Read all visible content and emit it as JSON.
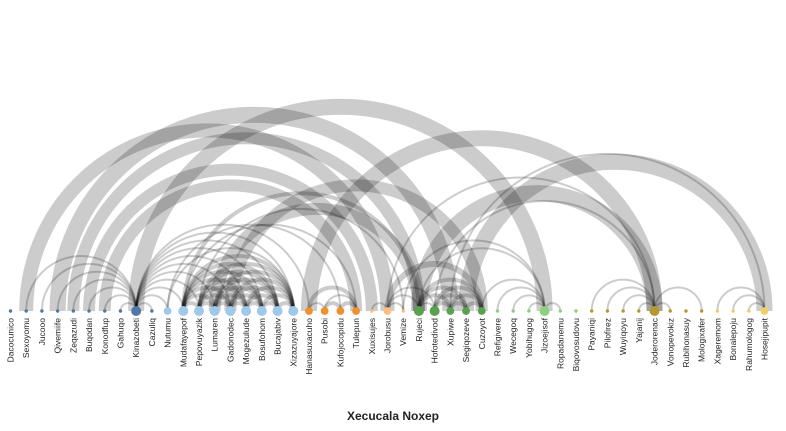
{
  "title": "Xecucala Noxep",
  "group_colors": {
    "blue": "#4e79a7",
    "light_blue": "#9ecae9",
    "orange": "#f28e2b",
    "light_orange": "#ffbe7d",
    "green": "#59a14f",
    "light_green": "#8cd17d",
    "olive": "#b6992d",
    "yellow": "#f1ce63"
  },
  "link_color": "#000000",
  "nodes": [
    {
      "id": "Dacocunico",
      "group": "blue",
      "size": 1
    },
    {
      "id": "Sexoyomu",
      "group": "blue",
      "size": 1
    },
    {
      "id": "Jucooo",
      "group": "blue",
      "size": 1
    },
    {
      "id": "Qivemiife",
      "group": "blue",
      "size": 1
    },
    {
      "id": "Zeqazudi",
      "group": "blue",
      "size": 1
    },
    {
      "id": "Buqodan",
      "group": "blue",
      "size": 1
    },
    {
      "id": "Konodfup",
      "group": "blue",
      "size": 1
    },
    {
      "id": "Gahuqo",
      "group": "blue",
      "size": 1
    },
    {
      "id": "Kinazobeti",
      "group": "blue",
      "size": 4
    },
    {
      "id": "Cazuliq",
      "group": "blue",
      "size": 1
    },
    {
      "id": "Nutumu",
      "group": "light_blue",
      "size": 3
    },
    {
      "id": "Mudafayepof",
      "group": "light_blue",
      "size": 4
    },
    {
      "id": "Pepovuyazik",
      "group": "light_blue",
      "size": 4
    },
    {
      "id": "Lumaren",
      "group": "light_blue",
      "size": 4
    },
    {
      "id": "Gadonodec",
      "group": "light_blue",
      "size": 4
    },
    {
      "id": "Mogezulude",
      "group": "light_blue",
      "size": 4
    },
    {
      "id": "Bosufohom",
      "group": "light_blue",
      "size": 4
    },
    {
      "id": "Bucajabiv",
      "group": "light_blue",
      "size": 4
    },
    {
      "id": "Xizazuyajore",
      "group": "light_blue",
      "size": 4
    },
    {
      "id": "Hanasuxacuho",
      "group": "orange",
      "size": 3
    },
    {
      "id": "Pusobi",
      "group": "orange",
      "size": 3
    },
    {
      "id": "Kufojocopidu",
      "group": "orange",
      "size": 3
    },
    {
      "id": "Tulepun",
      "group": "orange",
      "size": 3
    },
    {
      "id": "Xuxisujes",
      "group": "light_orange",
      "size": 1
    },
    {
      "id": "Jorobusu",
      "group": "light_orange",
      "size": 3
    },
    {
      "id": "Vemize",
      "group": "light_orange",
      "size": 1
    },
    {
      "id": "Rujeci",
      "group": "green",
      "size": 4
    },
    {
      "id": "Hofotedivod",
      "group": "green",
      "size": 4
    },
    {
      "id": "Xupiwe",
      "group": "green",
      "size": 3
    },
    {
      "id": "Segiqozeve",
      "group": "green",
      "size": 3
    },
    {
      "id": "Cuzoyot",
      "group": "green",
      "size": 3
    },
    {
      "id": "Refigivere",
      "group": "light_green",
      "size": 1
    },
    {
      "id": "Wecegoq",
      "group": "light_green",
      "size": 1
    },
    {
      "id": "Yobihugog",
      "group": "light_green",
      "size": 1
    },
    {
      "id": "Jizoejisof",
      "group": "light_green",
      "size": 4
    },
    {
      "id": "Ropadanemu",
      "group": "light_green",
      "size": 1
    },
    {
      "id": "Biqovosudovu",
      "group": "light_green",
      "size": 1
    },
    {
      "id": "Payaniqi",
      "group": "olive",
      "size": 1
    },
    {
      "id": "Pilofirez",
      "group": "olive",
      "size": 1
    },
    {
      "id": "Wuyiqoyu",
      "group": "olive",
      "size": 1
    },
    {
      "id": "Yajanij",
      "group": "olive",
      "size": 1
    },
    {
      "id": "Joderorenac",
      "group": "olive",
      "size": 4
    },
    {
      "id": "Vonopevokiz",
      "group": "olive",
      "size": 1
    },
    {
      "id": "Rubihonasuy",
      "group": "olive",
      "size": 1
    },
    {
      "id": "Mologixafer",
      "group": "olive",
      "size": 1
    },
    {
      "id": "Xageremom",
      "group": "yellow",
      "size": 1
    },
    {
      "id": "Bonalepoju",
      "group": "yellow",
      "size": 1
    },
    {
      "id": "Rahumologog",
      "group": "yellow",
      "size": 1
    },
    {
      "id": "Hosejipupit",
      "group": "yellow",
      "size": 3
    }
  ],
  "links": [
    {
      "source": "Sexoyomu",
      "target": "Kinazobeti",
      "value": 1
    },
    {
      "source": "Jucooo",
      "target": "Kinazobeti",
      "value": 1
    },
    {
      "source": "Qivemiife",
      "target": "Kinazobeti",
      "value": 1
    },
    {
      "source": "Zeqazudi",
      "target": "Kinazobeti",
      "value": 1
    },
    {
      "source": "Buqodan",
      "target": "Kinazobeti",
      "value": 1
    },
    {
      "source": "Konodfup",
      "target": "Kinazobeti",
      "value": 1
    },
    {
      "source": "Gahuqo",
      "target": "Kinazobeti",
      "value": 1
    },
    {
      "source": "Kinazobeti",
      "target": "Cazuliq",
      "value": 1
    },
    {
      "source": "Qivemiife",
      "target": "Xupiwe",
      "value": 8
    },
    {
      "source": "Sexoyomu",
      "target": "Jorobusu",
      "value": 7
    },
    {
      "source": "Zeqazudi",
      "target": "Rujeci",
      "value": 6
    },
    {
      "source": "Buqodan",
      "target": "Xuxisujes",
      "value": 6
    },
    {
      "source": "Konodfup",
      "target": "Tulepun",
      "value": 6
    },
    {
      "source": "Kinazobeti",
      "target": "Nutumu",
      "value": 1
    },
    {
      "source": "Kinazobeti",
      "target": "Mudafayepof",
      "value": 1
    },
    {
      "source": "Kinazobeti",
      "target": "Pepovuyazik",
      "value": 1
    },
    {
      "source": "Kinazobeti",
      "target": "Lumaren",
      "value": 1
    },
    {
      "source": "Kinazobeti",
      "target": "Gadonodec",
      "value": 1
    },
    {
      "source": "Kinazobeti",
      "target": "Mogezulude",
      "value": 1
    },
    {
      "source": "Kinazobeti",
      "target": "Bosufohom",
      "value": 1
    },
    {
      "source": "Kinazobeti",
      "target": "Bucajabiv",
      "value": 1
    },
    {
      "source": "Kinazobeti",
      "target": "Xizazuyajore",
      "value": 1
    },
    {
      "source": "Kinazobeti",
      "target": "Hanasuxacuho",
      "value": 1
    },
    {
      "source": "Kinazobeti",
      "target": "Jizoejisof",
      "value": 8
    },
    {
      "source": "Mudafayepof",
      "target": "Pepovuyazik",
      "value": 2
    },
    {
      "source": "Mudafayepof",
      "target": "Lumaren",
      "value": 2
    },
    {
      "source": "Mudafayepof",
      "target": "Gadonodec",
      "value": 2
    },
    {
      "source": "Mudafayepof",
      "target": "Mogezulude",
      "value": 2
    },
    {
      "source": "Mudafayepof",
      "target": "Bosufohom",
      "value": 2
    },
    {
      "source": "Mudafayepof",
      "target": "Bucajabiv",
      "value": 2
    },
    {
      "source": "Mudafayepof",
      "target": "Xizazuyajore",
      "value": 2
    },
    {
      "source": "Pepovuyazik",
      "target": "Lumaren",
      "value": 2
    },
    {
      "source": "Pepovuyazik",
      "target": "Gadonodec",
      "value": 2
    },
    {
      "source": "Pepovuyazik",
      "target": "Mogezulude",
      "value": 2
    },
    {
      "source": "Pepovuyazik",
      "target": "Bosufohom",
      "value": 2
    },
    {
      "source": "Pepovuyazik",
      "target": "Bucajabiv",
      "value": 2
    },
    {
      "source": "Pepovuyazik",
      "target": "Xizazuyajore",
      "value": 2
    },
    {
      "source": "Lumaren",
      "target": "Gadonodec",
      "value": 2
    },
    {
      "source": "Lumaren",
      "target": "Mogezulude",
      "value": 2
    },
    {
      "source": "Lumaren",
      "target": "Bosufohom",
      "value": 2
    },
    {
      "source": "Lumaren",
      "target": "Bucajabiv",
      "value": 2
    },
    {
      "source": "Lumaren",
      "target": "Xizazuyajore",
      "value": 2
    },
    {
      "source": "Gadonodec",
      "target": "Mogezulude",
      "value": 2
    },
    {
      "source": "Gadonodec",
      "target": "Bosufohom",
      "value": 2
    },
    {
      "source": "Gadonodec",
      "target": "Bucajabiv",
      "value": 2
    },
    {
      "source": "Gadonodec",
      "target": "Xizazuyajore",
      "value": 2
    },
    {
      "source": "Mogezulude",
      "target": "Bosufohom",
      "value": 2
    },
    {
      "source": "Mogezulude",
      "target": "Bucajabiv",
      "value": 2
    },
    {
      "source": "Mogezulude",
      "target": "Xizazuyajore",
      "value": 2
    },
    {
      "source": "Bosufohom",
      "target": "Bucajabiv",
      "value": 2
    },
    {
      "source": "Bosufohom",
      "target": "Xizazuyajore",
      "value": 2
    },
    {
      "source": "Bucajabiv",
      "target": "Xizazuyajore",
      "value": 2
    },
    {
      "source": "Nutumu",
      "target": "Xizazuyajore",
      "value": 1
    },
    {
      "source": "Nutumu",
      "target": "Kufojocopidu",
      "value": 1
    },
    {
      "source": "Mudafayepof",
      "target": "Tulepun",
      "value": 1
    },
    {
      "source": "Mudafayepof",
      "target": "Rujeci",
      "value": 2
    },
    {
      "source": "Pepovuyazik",
      "target": "Vemize",
      "value": 1
    },
    {
      "source": "Lumaren",
      "target": "Rujeci",
      "value": 6
    },
    {
      "source": "Gadonodec",
      "target": "Cuzoyot",
      "value": 6
    },
    {
      "source": "Hanasuxacuho",
      "target": "Pusobi",
      "value": 1
    },
    {
      "source": "Hanasuxacuho",
      "target": "Tulepun",
      "value": 2
    },
    {
      "source": "Pusobi",
      "target": "Kufojocopidu",
      "value": 2
    },
    {
      "source": "Pusobi",
      "target": "Tulepun",
      "value": 1
    },
    {
      "source": "Kufojocopidu",
      "target": "Tulepun",
      "value": 2
    },
    {
      "source": "Hanasuxacuho",
      "target": "Joderorenac",
      "value": 8
    },
    {
      "source": "Xuxisujes",
      "target": "Jorobusu",
      "value": 1
    },
    {
      "source": "Jorobusu",
      "target": "Vemize",
      "value": 1
    },
    {
      "source": "Jorobusu",
      "target": "Rujeci",
      "value": 1
    },
    {
      "source": "Jorobusu",
      "target": "Hofotedivod",
      "value": 1
    },
    {
      "source": "Jorobusu",
      "target": "Cuzoyot",
      "value": 3
    },
    {
      "source": "Jorobusu",
      "target": "Joderorenac",
      "value": 1
    },
    {
      "source": "Vemize",
      "target": "Jizoejisof",
      "value": 1
    },
    {
      "source": "Rujeci",
      "target": "Hofotedivod",
      "value": 1
    },
    {
      "source": "Rujeci",
      "target": "Xupiwe",
      "value": 2
    },
    {
      "source": "Rujeci",
      "target": "Segiqozeve",
      "value": 2
    },
    {
      "source": "Rujeci",
      "target": "Cuzoyot",
      "value": 2
    },
    {
      "source": "Hofotedivod",
      "target": "Xupiwe",
      "value": 2
    },
    {
      "source": "Hofotedivod",
      "target": "Segiqozeve",
      "value": 2
    },
    {
      "source": "Hofotedivod",
      "target": "Cuzoyot",
      "value": 2
    },
    {
      "source": "Xupiwe",
      "target": "Segiqozeve",
      "value": 2
    },
    {
      "source": "Xupiwe",
      "target": "Cuzoyot",
      "value": 2
    },
    {
      "source": "Segiqozeve",
      "target": "Cuzoyot",
      "value": 2
    },
    {
      "source": "Rujeci",
      "target": "Jizoejisof",
      "value": 1
    },
    {
      "source": "Rujeci",
      "target": "Joderorenac",
      "value": 8
    },
    {
      "source": "Xupiwe",
      "target": "Hosejipupit",
      "value": 1
    },
    {
      "source": "Segiqozeve",
      "target": "Hosejipupit",
      "value": 8
    },
    {
      "source": "Hofotedivod",
      "target": "Joderorenac",
      "value": 1
    },
    {
      "source": "Cuzoyot",
      "target": "Jizoejisof",
      "value": 1
    },
    {
      "source": "Refigivere",
      "target": "Jizoejisof",
      "value": 1
    },
    {
      "source": "Wecegoq",
      "target": "Jizoejisof",
      "value": 1
    },
    {
      "source": "Yobihugog",
      "target": "Jizoejisof",
      "value": 1
    },
    {
      "source": "Jizoejisof",
      "target": "Ropadanemu",
      "value": 1
    },
    {
      "source": "Payaniqi",
      "target": "Joderorenac",
      "value": 1
    },
    {
      "source": "Pilofirez",
      "target": "Joderorenac",
      "value": 1
    },
    {
      "source": "Wuyiqoyu",
      "target": "Joderorenac",
      "value": 1
    },
    {
      "source": "Yajanij",
      "target": "Joderorenac",
      "value": 1
    },
    {
      "source": "Joderorenac",
      "target": "Vonopevokiz",
      "value": 1
    },
    {
      "source": "Joderorenac",
      "target": "Mologixafer",
      "value": 1
    },
    {
      "source": "Xageremom",
      "target": "Hosejipupit",
      "value": 1
    },
    {
      "source": "Bonalepoju",
      "target": "Hosejipupit",
      "value": 1
    },
    {
      "source": "Rahumologog",
      "target": "Hosejipupit",
      "value": 1
    }
  ]
}
